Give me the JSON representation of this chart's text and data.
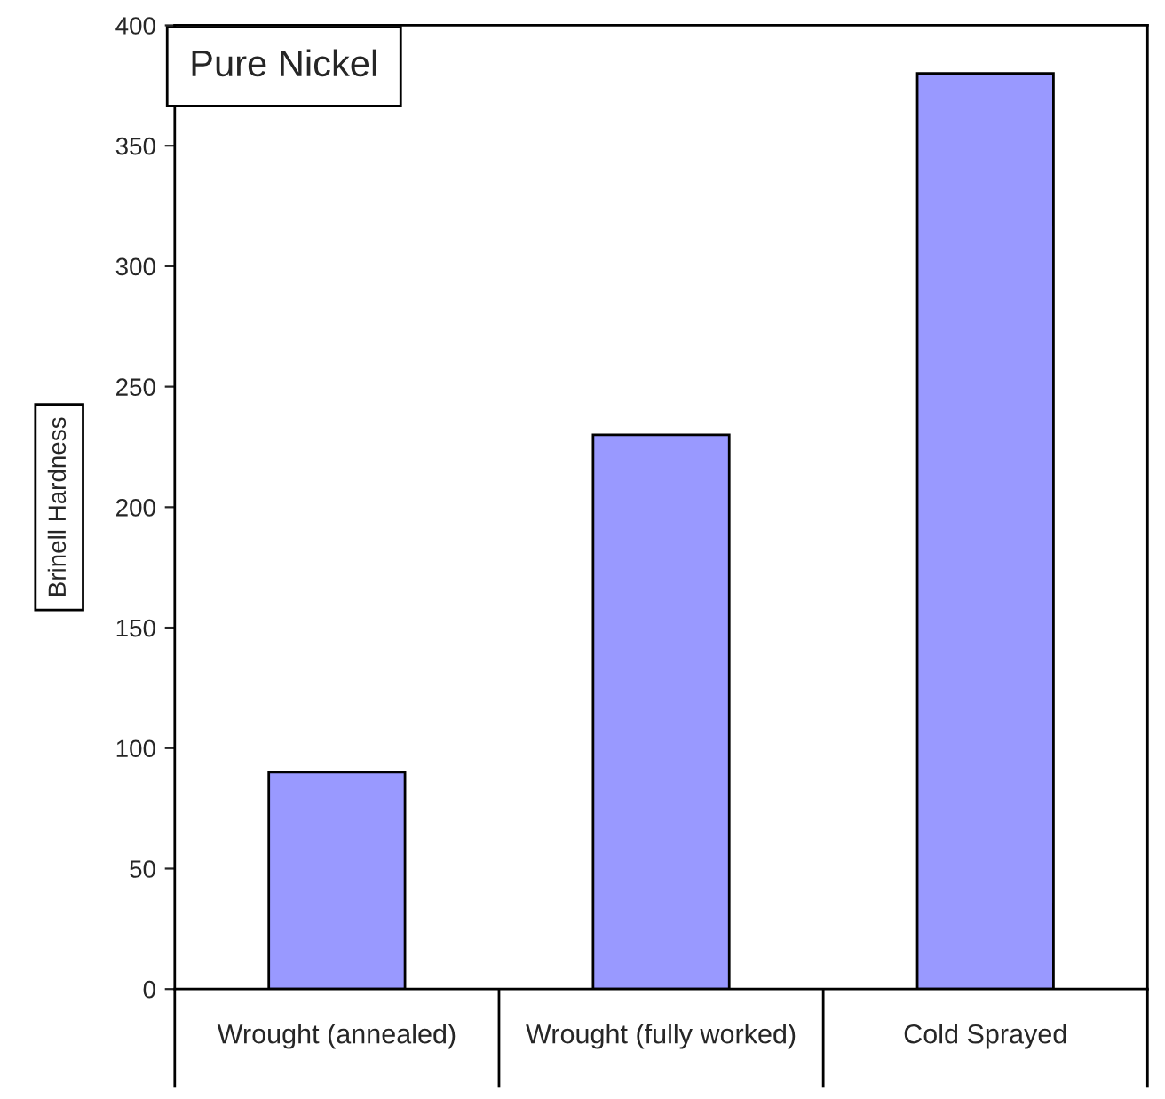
{
  "chart_data": {
    "type": "bar",
    "title": "Pure Nickel",
    "ylabel": "Brinell Hardness",
    "categories": [
      "Wrought (annealed)",
      "Wrought (fully worked)",
      "Cold Sprayed"
    ],
    "values": [
      90,
      230,
      380
    ],
    "color": "#9999ff",
    "ylim": [
      0,
      400
    ],
    "yticks": [
      0,
      50,
      100,
      150,
      200,
      250,
      300,
      350,
      400
    ],
    "grid": false,
    "legend": false
  }
}
